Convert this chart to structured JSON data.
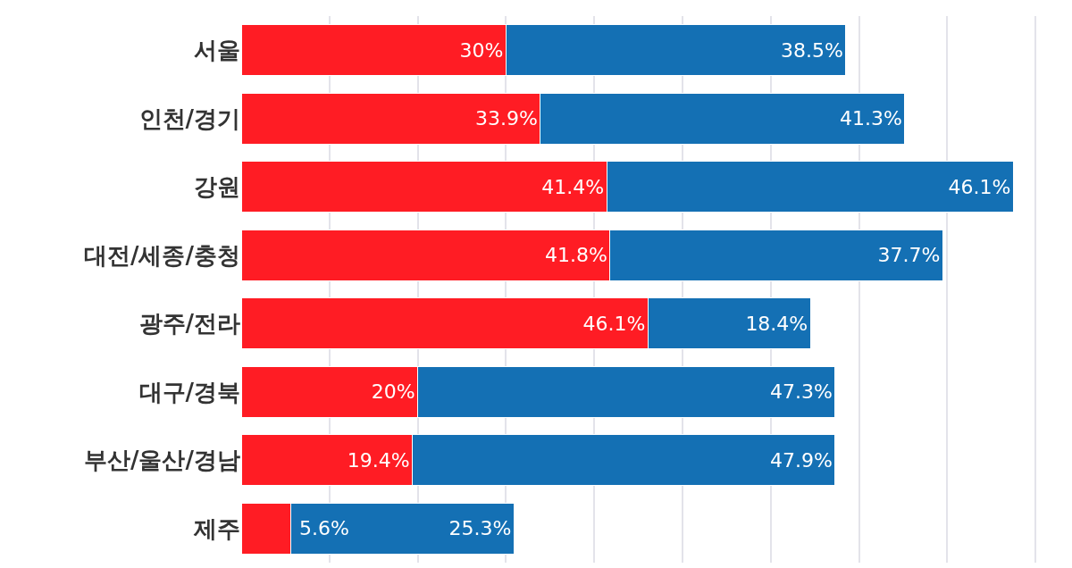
{
  "chart_data": {
    "type": "bar",
    "orientation": "horizontal",
    "stacked": true,
    "categories": [
      "서울",
      "인천/경기",
      "강원",
      "대전/세종/충청",
      "광주/전라",
      "대구/경북",
      "부산/울산/경남",
      "제주"
    ],
    "series": [
      {
        "color": "#ff1c24",
        "values": [
          30,
          33.9,
          41.4,
          41.8,
          46.1,
          20,
          19.4,
          5.6
        ],
        "value_labels": [
          "30%",
          "33.9%",
          "41.4%",
          "41.8%",
          "46.1%",
          "20%",
          "19.4%",
          "5.6%"
        ]
      },
      {
        "color": "#1470b4",
        "values": [
          38.5,
          41.3,
          46.1,
          37.7,
          18.4,
          47.3,
          47.9,
          25.3
        ],
        "value_labels": [
          "38.5%",
          "41.3%",
          "46.1%",
          "37.7%",
          "18.4%",
          "47.3%",
          "47.9%",
          "25.3%"
        ]
      }
    ],
    "grid": "x",
    "tick_labels": "y"
  }
}
